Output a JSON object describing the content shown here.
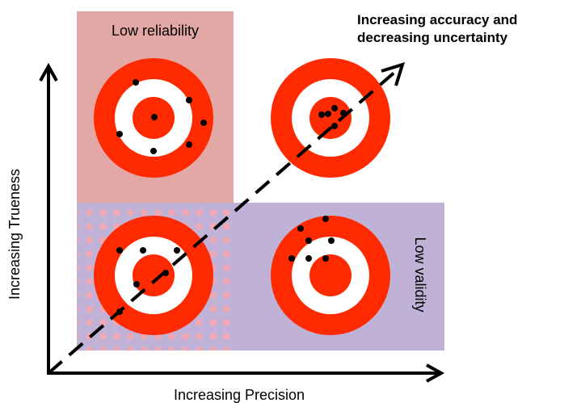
{
  "labels": {
    "low_reliability": "Low reliability",
    "low_validity": "Low validity",
    "title_line1": "Increasing accuracy and",
    "title_line2": "decreasing uncertainty",
    "x_axis": "Increasing Precision",
    "y_axis": "Increasing Trueness"
  },
  "colors": {
    "low_reliability_region": "#e3a8a6",
    "low_validity_region": "#bfb2d6",
    "target_red": "#ff2a00",
    "target_white": "#ffffff",
    "hit_dot": "#000000",
    "dot_pattern": "#f2a8b4"
  },
  "targets": [
    {
      "name": "top-left",
      "hits": 7
    },
    {
      "name": "top-right",
      "hits": 5
    },
    {
      "name": "bottom-left",
      "hits": 6
    },
    {
      "name": "bottom-right",
      "hits": 7
    }
  ]
}
